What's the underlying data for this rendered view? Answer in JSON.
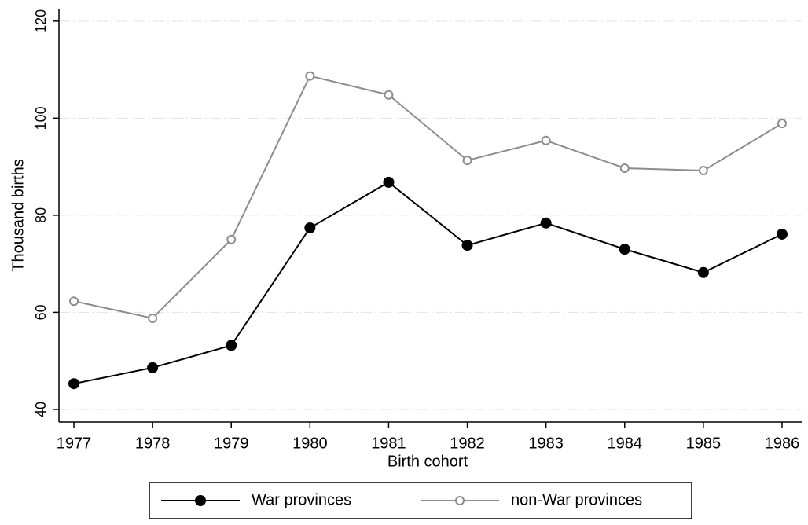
{
  "chart_data": {
    "type": "line",
    "x_label": "Birth cohort",
    "y_label": "Thousand births",
    "x": [
      1977,
      1978,
      1979,
      1980,
      1981,
      1982,
      1983,
      1984,
      1985,
      1986
    ],
    "series": [
      {
        "name": "War provinces",
        "color": "#000000",
        "marker": "filled",
        "values": [
          45.3,
          48.6,
          53.2,
          77.4,
          86.8,
          73.8,
          78.4,
          73.0,
          68.2,
          76.1
        ]
      },
      {
        "name": "non-War provinces",
        "color": "#8c8c8c",
        "marker": "hollow",
        "values": [
          62.3,
          58.8,
          75.0,
          108.7,
          104.8,
          91.3,
          95.4,
          89.7,
          89.2,
          98.9
        ]
      }
    ],
    "xlim": [
      1976.81,
      1986.25
    ],
    "ylim": [
      37.4,
      122.4
    ],
    "xticks": [
      1977,
      1978,
      1979,
      1980,
      1981,
      1982,
      1983,
      1984,
      1985,
      1986
    ],
    "yticks": [
      40,
      60,
      80,
      100,
      120
    ],
    "grid": true,
    "legend": "bottom"
  }
}
